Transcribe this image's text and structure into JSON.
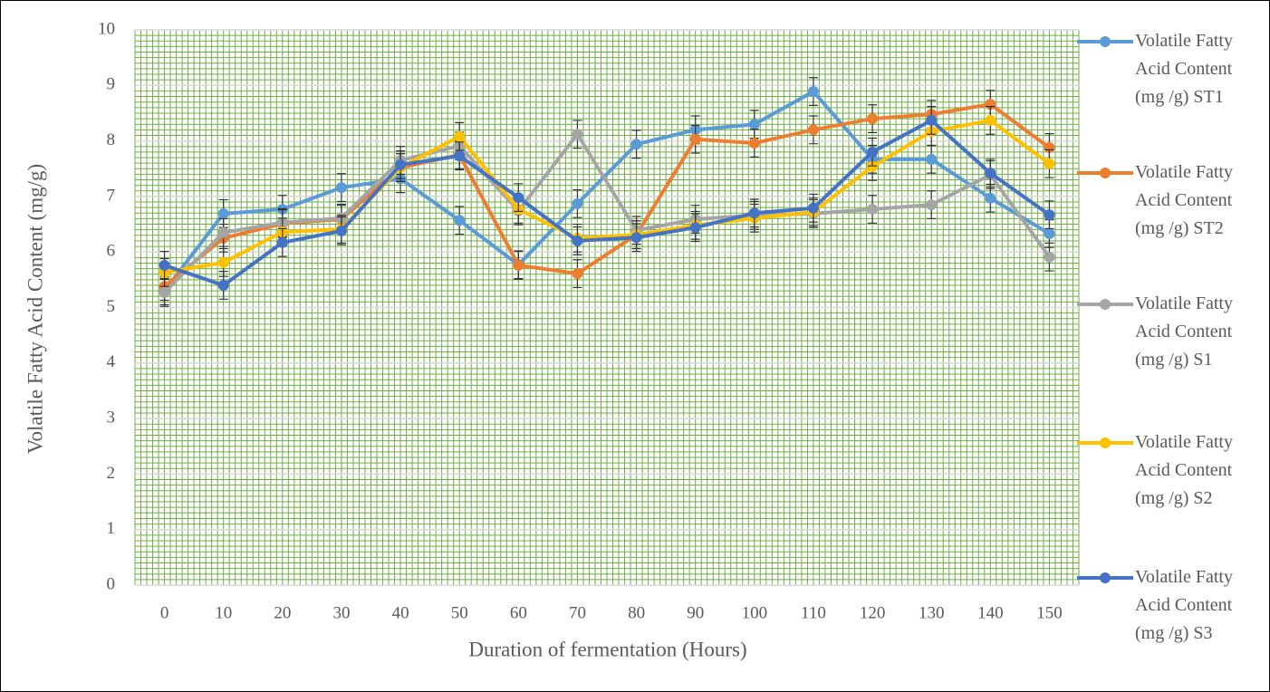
{
  "chart_data": {
    "type": "line",
    "x_label": "Duration of fermentation (Hours)",
    "y_label": "Volatile Fatty Acid Content (mg/g)",
    "categories": [
      0,
      10,
      20,
      30,
      40,
      50,
      60,
      70,
      80,
      90,
      100,
      110,
      120,
      130,
      140,
      150
    ],
    "ylim": [
      0,
      10
    ],
    "yticks": [
      0,
      1,
      2,
      3,
      4,
      5,
      6,
      7,
      8,
      9,
      10
    ],
    "grid": true,
    "minor_grid_color": "#70ad47",
    "legend": "right",
    "series": [
      {
        "name": "Volatile Fatty Acid Content (mg /g) ST1",
        "color": "#5b9bd5",
        "values": [
          5.3,
          6.69,
          6.77,
          7.16,
          7.32,
          6.57,
          5.77,
          6.87,
          7.94,
          8.2,
          8.3,
          8.89,
          7.67,
          7.67,
          6.97,
          6.33
        ],
        "errors": [
          0.25,
          0.25,
          0.25,
          0.25,
          0.25,
          0.25,
          0.25,
          0.25,
          0.25,
          0.25,
          0.25,
          0.25,
          0.25,
          0.25,
          0.25,
          0.25
        ]
      },
      {
        "name": "Volatile Fatty Acid Content (mg /g) ST2",
        "color": "#ed7d31",
        "values": [
          5.38,
          6.25,
          6.51,
          6.59,
          7.52,
          7.75,
          5.76,
          5.61,
          6.31,
          8.03,
          7.96,
          8.2,
          8.4,
          8.48,
          8.66,
          7.88
        ],
        "errors": [
          0.25,
          0.25,
          0.25,
          0.25,
          0.25,
          0.25,
          0.25,
          0.25,
          0.25,
          0.25,
          0.25,
          0.25,
          0.25,
          0.25,
          0.25,
          0.25
        ]
      },
      {
        "name": "Volatile Fatty Acid Content (mg /g) S1",
        "color": "#a5a5a5",
        "values": [
          5.27,
          6.35,
          6.53,
          6.61,
          7.65,
          7.91,
          6.74,
          8.12,
          6.39,
          6.59,
          6.66,
          6.69,
          6.77,
          6.85,
          7.39,
          5.91
        ],
        "errors": [
          0.25,
          0.25,
          0.25,
          0.25,
          0.25,
          0.25,
          0.25,
          0.25,
          0.25,
          0.25,
          0.25,
          0.25,
          0.25,
          0.25,
          0.25,
          0.25
        ]
      },
      {
        "name": "Volatile Fatty Acid Content (mg /g) S2",
        "color": "#ffc000",
        "values": [
          5.63,
          5.81,
          6.36,
          6.41,
          7.52,
          8.08,
          6.77,
          6.25,
          6.31,
          6.48,
          6.61,
          6.72,
          7.54,
          8.17,
          8.37,
          7.59
        ],
        "errors": [
          0.25,
          0.25,
          0.25,
          0.25,
          0.25,
          0.25,
          0.25,
          0.25,
          0.25,
          0.25,
          0.25,
          0.25,
          0.25,
          0.25,
          0.25,
          0.25
        ]
      },
      {
        "name": "Volatile Fatty Acid Content (mg /g) S3",
        "color": "#4472c4",
        "values": [
          5.76,
          5.4,
          6.17,
          6.38,
          7.57,
          7.73,
          6.98,
          6.2,
          6.26,
          6.44,
          6.7,
          6.79,
          7.8,
          8.37,
          7.42,
          6.67
        ],
        "errors": [
          0.25,
          0.25,
          0.25,
          0.25,
          0.25,
          0.25,
          0.25,
          0.25,
          0.25,
          0.25,
          0.25,
          0.25,
          0.25,
          0.25,
          0.25,
          0.25
        ]
      }
    ]
  }
}
